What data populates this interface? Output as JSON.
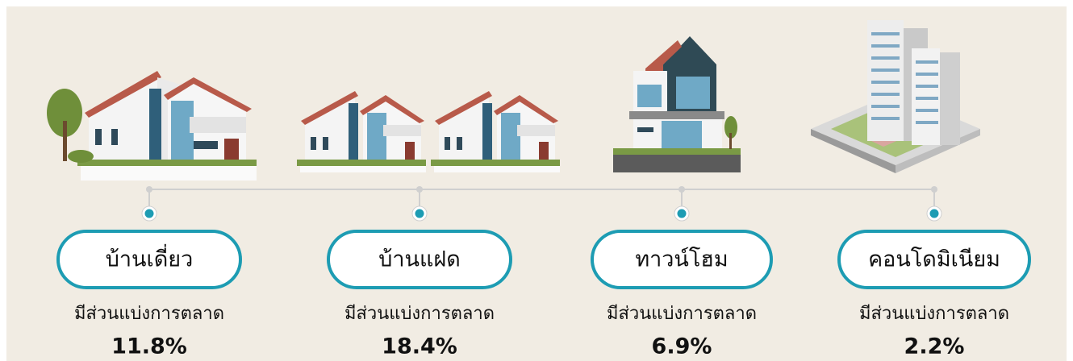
{
  "items": [
    {
      "label": "บ้านเดี่ยว",
      "caption": "มีส่วนแบ่งการตลาด",
      "value": "11.8%"
    },
    {
      "label": "บ้านแฝด",
      "caption": "มีส่วนแบ่งการตลาด",
      "value": "18.4%"
    },
    {
      "label": "ทาวน์โฮม",
      "caption": "มีส่วนแบ่งการตลาด",
      "value": "6.9%"
    },
    {
      "label": "คอนโดมิเนียม",
      "caption": "มีส่วนแบ่งการตลาด",
      "value": "2.2%"
    }
  ]
}
